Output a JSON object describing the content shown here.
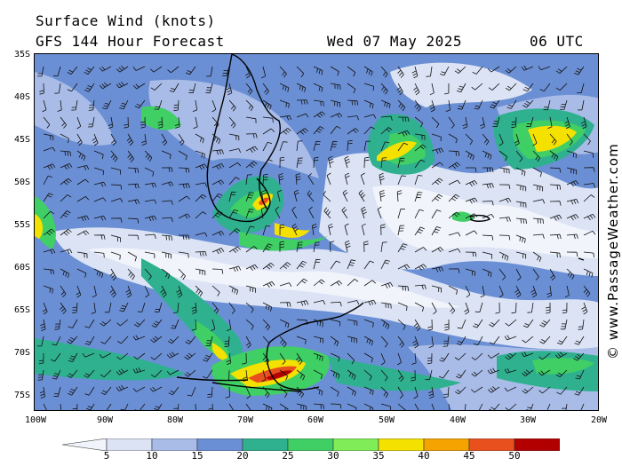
{
  "header": {
    "title": "Surface Wind (knots)",
    "subtitle": "GFS 144 Hour Forecast",
    "valid_date": "Wed 07 May 2025",
    "valid_time": "06 UTC"
  },
  "credit": "© www.PassageWeather.com",
  "axes": {
    "lat_labels": [
      "35S",
      "40S",
      "45S",
      "50S",
      "55S",
      "60S",
      "65S",
      "70S",
      "75S"
    ],
    "lon_labels": [
      "100W",
      "90W",
      "80W",
      "70W",
      "60W",
      "50W",
      "40W",
      "30W",
      "20W"
    ]
  },
  "legend": {
    "ticks": [
      "5",
      "10",
      "15",
      "20",
      "25",
      "30",
      "35",
      "40",
      "45",
      "50"
    ],
    "colors": [
      "#f2f4fb",
      "#dbe3f5",
      "#a9bce8",
      "#6b8fd4",
      "#2fb08f",
      "#3fcf65",
      "#80ec57",
      "#f5e100",
      "#f5a300",
      "#e8501e",
      "#b20000",
      "#b000b0"
    ]
  }
}
